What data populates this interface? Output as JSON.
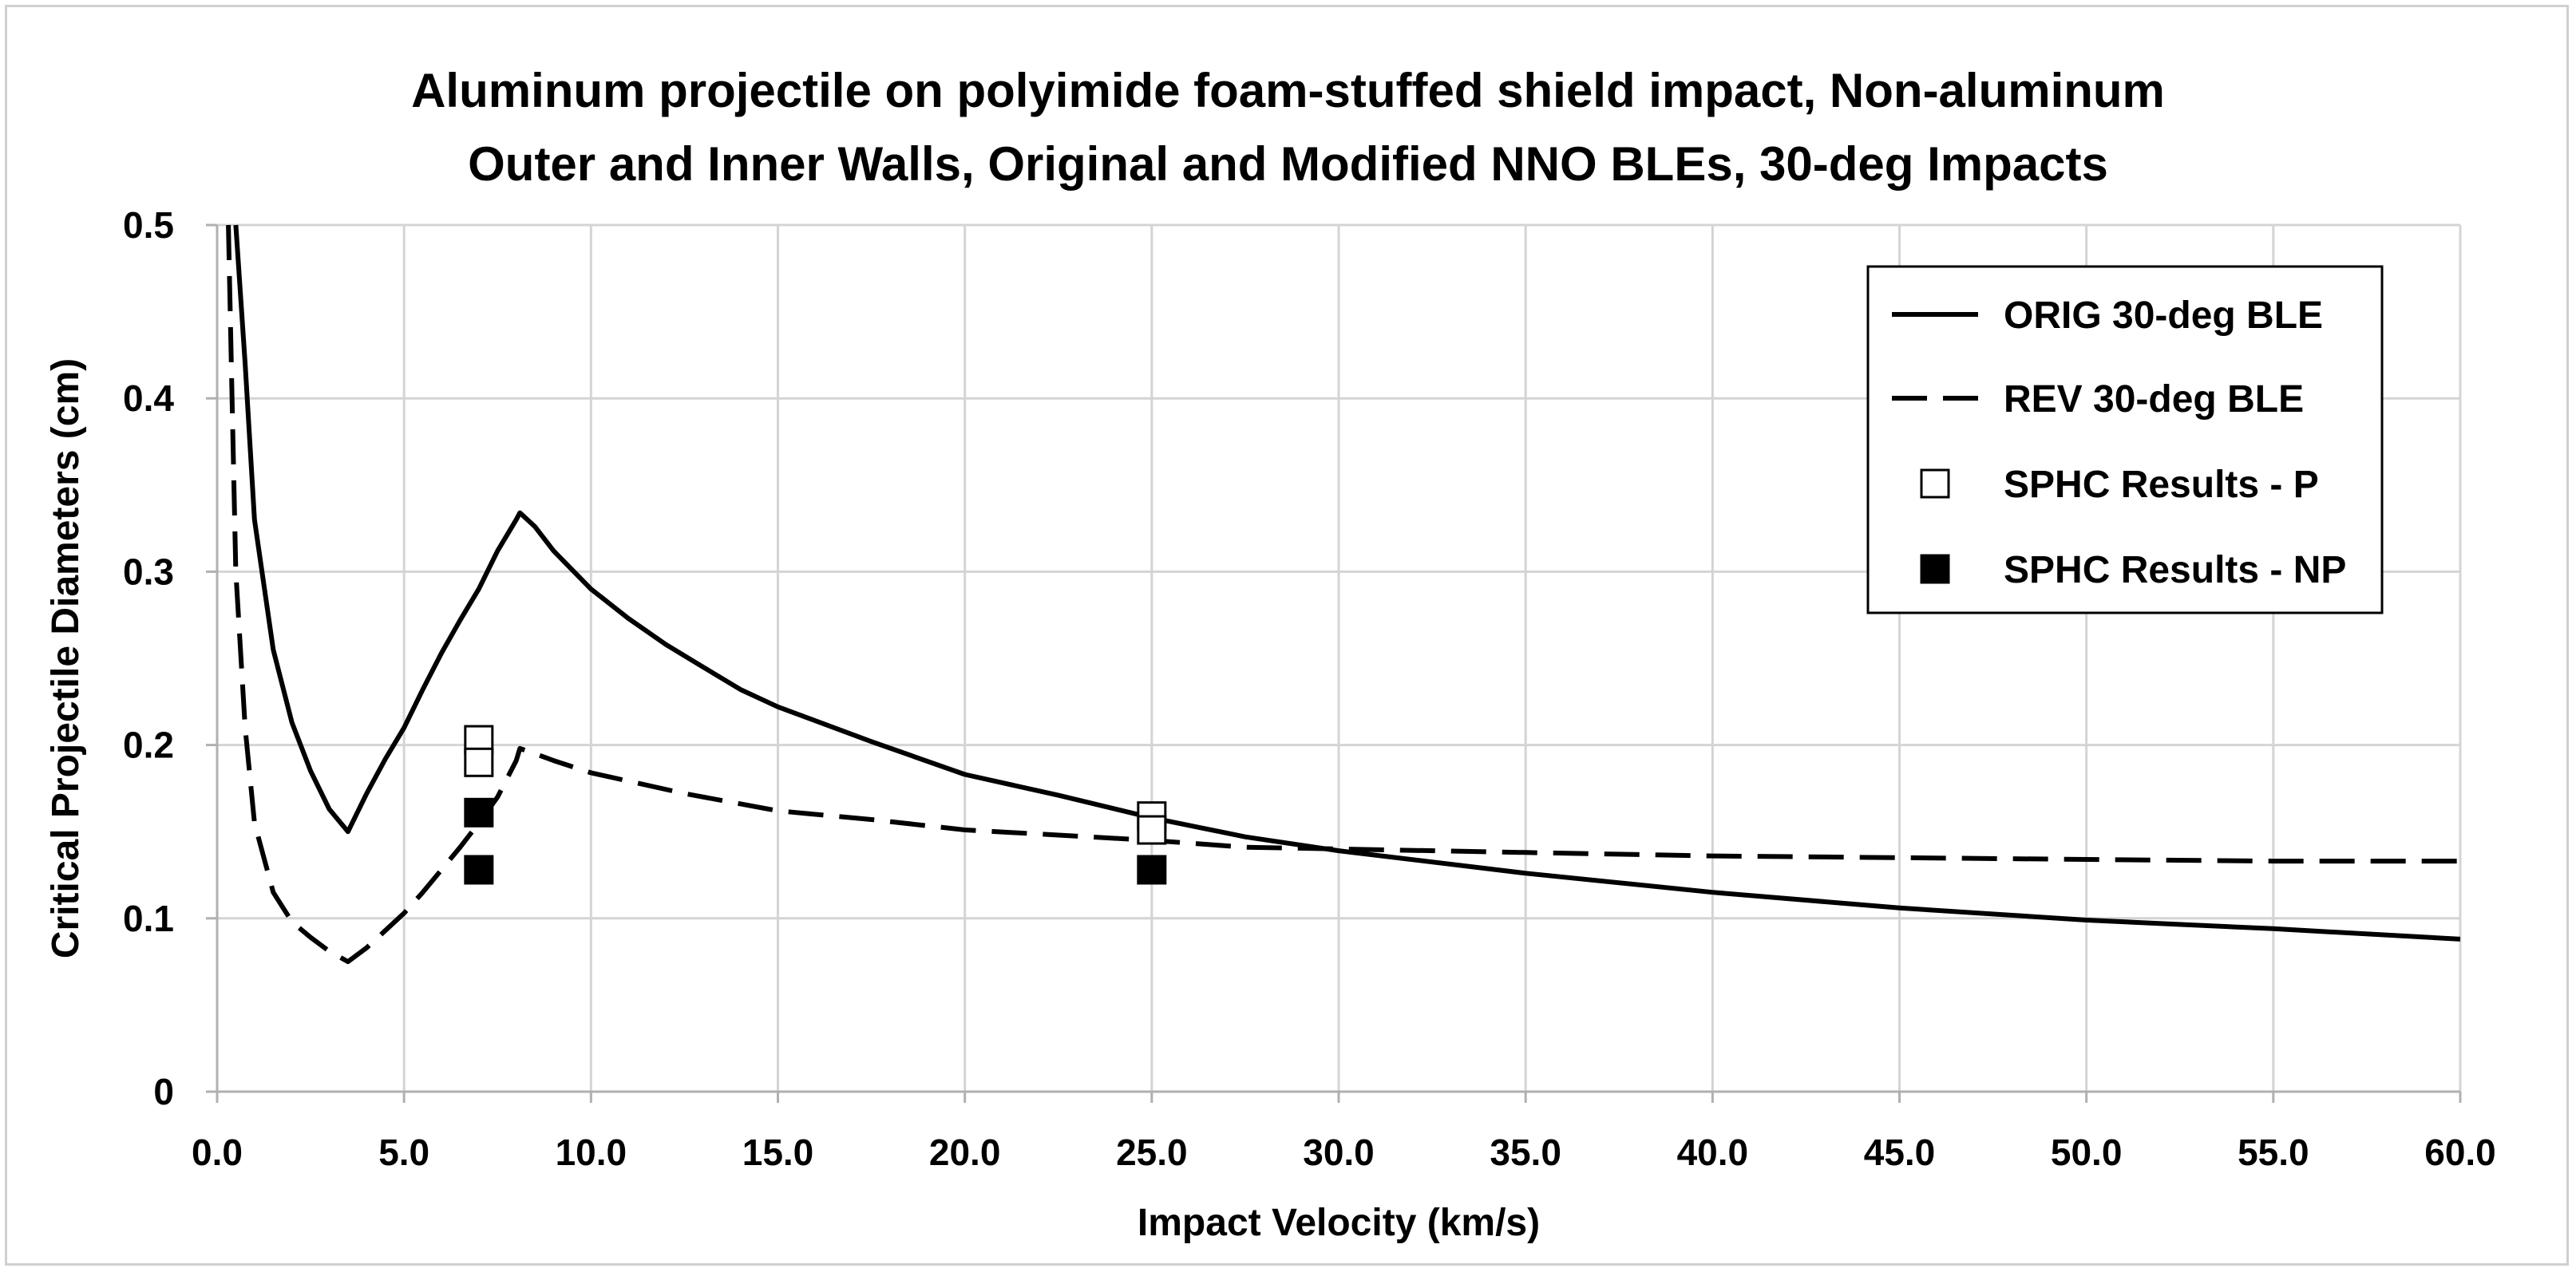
{
  "chart_data": {
    "type": "line",
    "title": [
      "Aluminum projectile on polyimide foam-stuffed shield impact, Non-aluminum",
      "Outer and Inner Walls, Original and Modified NNO BLEs, 30-deg Impacts"
    ],
    "xlabel": "Impact Velocity (km/s)",
    "ylabel": "Critical Projectile Diameters (cm)",
    "xlim": [
      0,
      60
    ],
    "ylim": [
      0,
      0.5
    ],
    "grid": true,
    "legend_position": "top-right",
    "x_tick_labels": [
      "0.0",
      "5.0",
      "10.0",
      "15.0",
      "20.0",
      "25.0",
      "30.0",
      "35.0",
      "40.0",
      "45.0",
      "50.0",
      "55.0",
      "60.0"
    ],
    "x_tick_values": [
      0,
      5,
      10,
      15,
      20,
      25,
      30,
      35,
      40,
      45,
      50,
      55,
      60
    ],
    "y_tick_labels": [
      "0",
      "0.1",
      "0.2",
      "0.3",
      "0.4",
      "0.5"
    ],
    "y_tick_values": [
      0,
      0.1,
      0.2,
      0.3,
      0.4,
      0.5
    ],
    "series": [
      {
        "name": "ORIG 30-deg BLE",
        "style": "solid",
        "x": [
          0.5,
          0.75,
          1.0,
          1.5,
          2.0,
          2.5,
          3.0,
          3.5,
          4.0,
          4.5,
          5.0,
          5.5,
          6.0,
          6.5,
          7.0,
          7.5,
          8.0,
          8.1,
          8.5,
          9.0,
          10.0,
          11.0,
          12.0,
          13.0,
          14.0,
          15.0,
          17.5,
          20.0,
          22.5,
          25.0,
          27.5,
          30.0,
          35.0,
          40.0,
          45.0,
          50.0,
          55.0,
          60.0
        ],
        "y": [
          0.5,
          0.42,
          0.33,
          0.255,
          0.213,
          0.185,
          0.163,
          0.15,
          0.172,
          0.192,
          0.21,
          0.232,
          0.253,
          0.272,
          0.29,
          0.312,
          0.33,
          0.334,
          0.326,
          0.312,
          0.29,
          0.273,
          0.258,
          0.245,
          0.232,
          0.222,
          0.202,
          0.183,
          0.171,
          0.158,
          0.147,
          0.139,
          0.126,
          0.115,
          0.106,
          0.099,
          0.094,
          0.088
        ]
      },
      {
        "name": "REV 30-deg BLE",
        "style": "dashed",
        "x": [
          0.3,
          0.4,
          0.5,
          0.75,
          1.0,
          1.5,
          2.0,
          2.5,
          3.0,
          3.5,
          4.0,
          4.5,
          5.0,
          5.5,
          6.0,
          6.5,
          7.0,
          7.5,
          8.0,
          8.1,
          8.5,
          9.0,
          10.0,
          12.5,
          15.0,
          17.5,
          20.0,
          22.5,
          25.0,
          27.5,
          30.0,
          35.0,
          40.0,
          45.0,
          50.0,
          55.0,
          60.0
        ],
        "y": [
          0.5,
          0.4,
          0.3,
          0.21,
          0.155,
          0.115,
          0.098,
          0.089,
          0.081,
          0.075,
          0.083,
          0.093,
          0.103,
          0.115,
          0.128,
          0.141,
          0.155,
          0.17,
          0.191,
          0.198,
          0.195,
          0.191,
          0.184,
          0.172,
          0.162,
          0.157,
          0.151,
          0.148,
          0.145,
          0.141,
          0.14,
          0.138,
          0.136,
          0.135,
          0.134,
          0.133,
          0.133
        ]
      },
      {
        "name": "SPHC Results - P",
        "style": "open-square",
        "x": [
          7.0,
          7.0,
          25.0,
          25.0
        ],
        "y": [
          0.203,
          0.19,
          0.159,
          0.151
        ]
      },
      {
        "name": "SPHC Results - NP",
        "style": "filled-square",
        "x": [
          7.0,
          7.0,
          25.0
        ],
        "y": [
          0.161,
          0.128,
          0.128
        ]
      }
    ]
  }
}
